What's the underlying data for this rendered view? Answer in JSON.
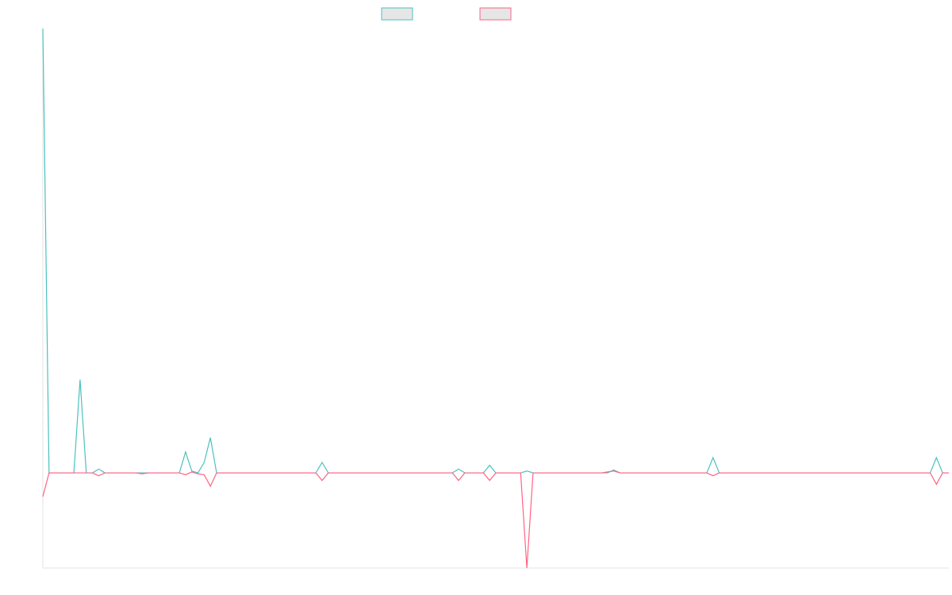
{
  "chart_data": {
    "type": "line",
    "ylim": [
      -1,
      4.67
    ],
    "series": [
      {
        "color": "#4bc0c0",
        "values": [
          4.67,
          0,
          0,
          0,
          0,
          0,
          0.98,
          0,
          0,
          0.04,
          0,
          0,
          0,
          0,
          0,
          0,
          0,
          0,
          0,
          0,
          0,
          0,
          0,
          0.22,
          0.02,
          0,
          0.11,
          0.37,
          0,
          0,
          0,
          0,
          0,
          0,
          0,
          0,
          0,
          0,
          0,
          0,
          0,
          0,
          0,
          0,
          0,
          0.11,
          0,
          0,
          0,
          0,
          0,
          0,
          0,
          0,
          0,
          0,
          0,
          0,
          0,
          0,
          0,
          0,
          0,
          0,
          0,
          0,
          0,
          0.04,
          0,
          0,
          0,
          0,
          0.08,
          0,
          0,
          0,
          0,
          0,
          0.02,
          0,
          0,
          0,
          0,
          0,
          0,
          0,
          0,
          0,
          0,
          0,
          0,
          0,
          0.03,
          0,
          0,
          0,
          0,
          0,
          0,
          0,
          0,
          0,
          0,
          0,
          0,
          0,
          0,
          0,
          0.16,
          0,
          0,
          0,
          0,
          0,
          0,
          0,
          0,
          0,
          0,
          0,
          0,
          0,
          0,
          0,
          0,
          0,
          0,
          0,
          0,
          0,
          0,
          0,
          0,
          0,
          0,
          0,
          0,
          0,
          0,
          0,
          0,
          0,
          0,
          0,
          0.16,
          0,
          0
        ]
      },
      {
        "color": "#ff6384",
        "values": [
          -0.25,
          0,
          0,
          0,
          0,
          0,
          0,
          0,
          0,
          -0.03,
          0,
          0,
          0,
          0,
          0,
          0,
          -0.01,
          0,
          0,
          0,
          0,
          0,
          0,
          -0.02,
          0.01,
          -0.01,
          -0.02,
          -0.14,
          0,
          0,
          0,
          0,
          0,
          0,
          0,
          0,
          0,
          0,
          0,
          0,
          0,
          0,
          0,
          0,
          0,
          -0.08,
          0,
          0,
          0,
          0,
          0,
          0,
          0,
          0,
          0,
          0,
          0,
          0,
          0,
          0,
          0,
          0,
          0,
          0,
          0,
          0,
          0,
          -0.08,
          0,
          0,
          0,
          0,
          -0.08,
          0,
          0,
          0,
          0,
          0,
          -1,
          0,
          0,
          0,
          0,
          0,
          0,
          0,
          0,
          0,
          0,
          0,
          0,
          0.01,
          0.02,
          0,
          0,
          0,
          0,
          0,
          0,
          0,
          0,
          0,
          0,
          0,
          0,
          0,
          0,
          0,
          -0.03,
          0,
          0,
          0,
          0,
          0,
          0,
          0,
          0,
          0,
          0,
          0,
          0,
          0,
          0,
          0,
          0,
          0,
          0,
          0,
          0,
          0,
          0,
          0,
          0,
          0,
          0,
          0,
          0,
          0,
          0,
          0,
          0,
          0,
          0,
          0,
          -0.12,
          0,
          0
        ]
      }
    ]
  }
}
